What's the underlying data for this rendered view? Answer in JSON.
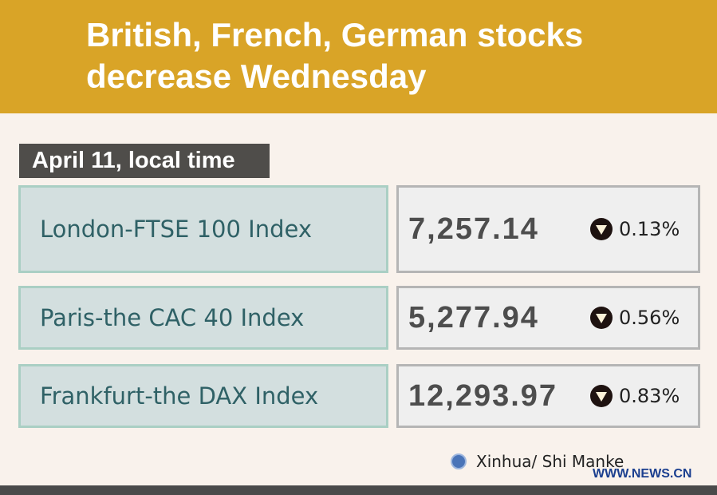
{
  "title": "British, French, German stocks decrease Wednesday",
  "date_label": "April 11, local time",
  "indices": [
    {
      "name": "London-FTSE 100 Index",
      "value": "7,257.14",
      "direction": "down",
      "change": "0.13%"
    },
    {
      "name": "Paris-the CAC 40 Index",
      "value": "5,277.94",
      "direction": "down",
      "change": "0.56%"
    },
    {
      "name": "Frankfurt-the DAX Index",
      "value": "12,293.97",
      "direction": "down",
      "change": "0.83%"
    }
  ],
  "credit": "Xinhua/ Shi Manke",
  "watermark": "WWW.NEWS.CN",
  "colors": {
    "header": "#d9a427",
    "background": "#f9f2ec",
    "label_box": "#d3dfdf",
    "value_box": "#efefef"
  }
}
